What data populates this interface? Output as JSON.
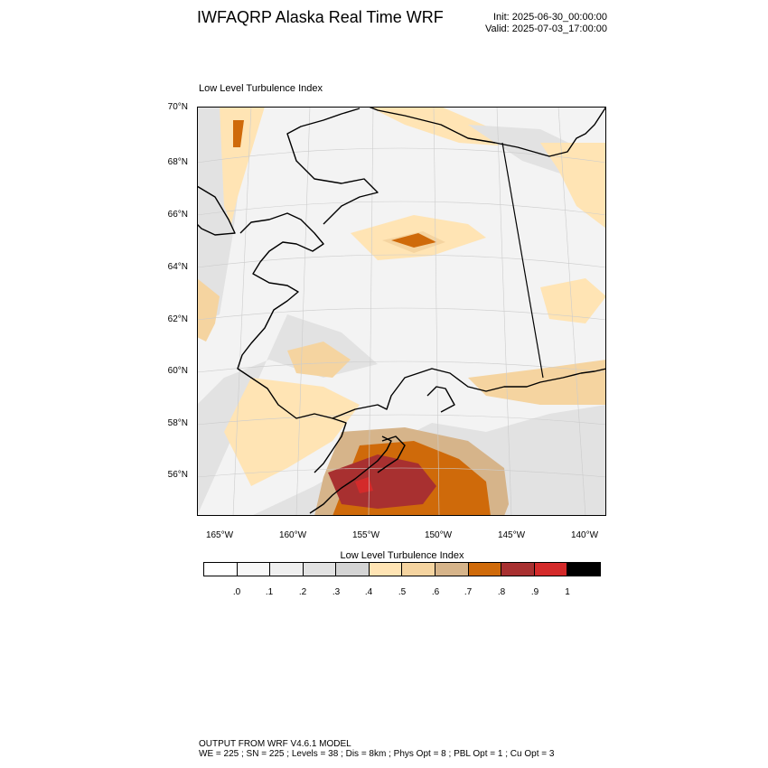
{
  "header": {
    "title": "IWFAQRP Alaska Real Time WRF",
    "init": "Init: 2025-06-30_00:00:00",
    "valid": "Valid: 2025-07-03_17:00:00"
  },
  "panel": {
    "title": "Low Level Turbulence Index",
    "lat_labels": [
      "70°N",
      "68°N",
      "66°N",
      "64°N",
      "62°N",
      "60°N",
      "58°N",
      "56°N"
    ],
    "lon_labels": [
      "165°W",
      "160°W",
      "155°W",
      "150°W",
      "145°W",
      "140°W"
    ]
  },
  "colorbar": {
    "title": "Low Level Turbulence Index",
    "colors": [
      "#ffffff",
      "#f8f8f8",
      "#efefef",
      "#e2e2e2",
      "#d4d4d4",
      "#ffe4b4",
      "#f5d4a0",
      "#d6b48a",
      "#cf6a0a",
      "#a83030",
      "#d42a2a",
      "#000000"
    ],
    "labels": [
      ".0",
      ".1",
      ".2",
      ".3",
      ".4",
      ".5",
      ".6",
      ".7",
      ".8",
      ".9",
      "1"
    ]
  },
  "footer": {
    "line1": "OUTPUT FROM WRF V4.6.1 MODEL",
    "line2": "WE = 225 ; SN = 225 ; Levels = 38 ; Dis = 8km ; Phys Opt = 8 ; PBL Opt = 1 ; Cu Opt = 3"
  }
}
